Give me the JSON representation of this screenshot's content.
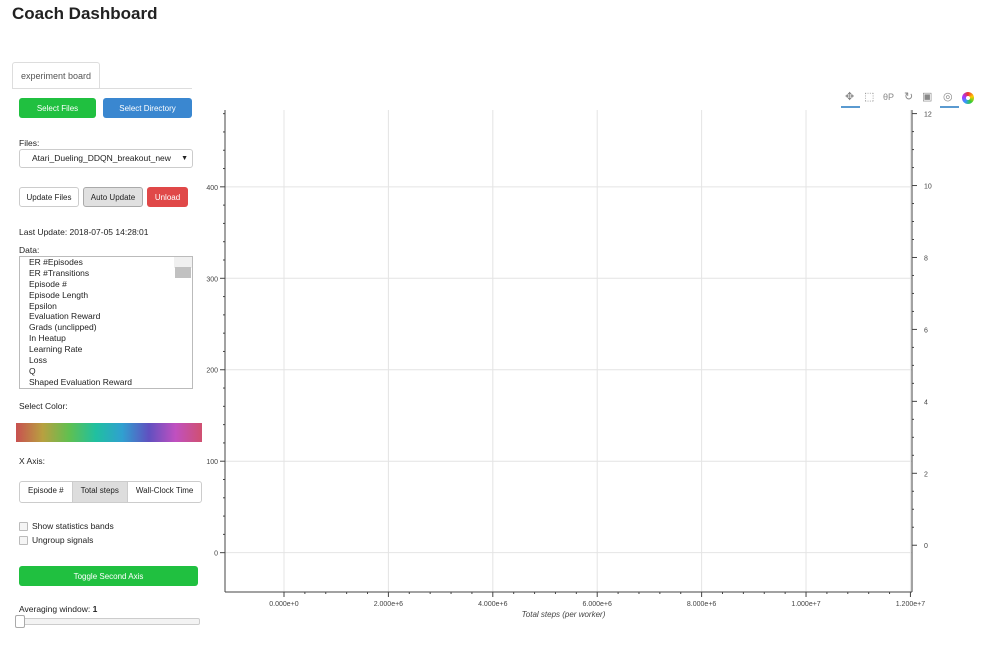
{
  "title": "Coach Dashboard",
  "tab": "experiment board",
  "buttons": {
    "select_files": "Select Files",
    "select_directory": "Select Directory",
    "update_files": "Update Files",
    "auto_update": "Auto Update",
    "unload": "Unload",
    "toggle_second_axis": "Toggle Second Axis"
  },
  "files": {
    "label": "Files:",
    "selected": "Atari_Dueling_DDQN_breakout_new"
  },
  "last_update": "Last Update: 2018-07-05 14:28:01",
  "data": {
    "label": "Data:",
    "items": [
      "ER #Episodes",
      "ER #Transitions",
      "Episode #",
      "Episode Length",
      "Epsilon",
      "Evaluation Reward",
      "Grads (unclipped)",
      "In Heatup",
      "Learning Rate",
      "Loss",
      "Q",
      "Shaped Evaluation Reward"
    ]
  },
  "select_color": "Select Color:",
  "x_axis": {
    "label": "X Axis:",
    "options": [
      "Episode #",
      "Total steps",
      "Wall-Clock Time"
    ],
    "selected": "Total steps"
  },
  "checkboxes": [
    {
      "label": "Show statistics bands",
      "checked": false
    },
    {
      "label": "Ungroup signals",
      "checked": false
    }
  ],
  "averaging": {
    "label": "Averaging window:",
    "value": "1"
  },
  "colors": {
    "green": "#20c040",
    "blue": "#3a87d0",
    "red": "#e04848"
  },
  "toolbar": [
    "pan-icon",
    "box-zoom-icon",
    "wheel-zoom-icon",
    "reset-icon",
    "save-icon",
    "hover-icon",
    "color-wheel-icon"
  ],
  "chart_data": {
    "type": "line",
    "xlabel": "Total steps (per worker)",
    "xlim": [
      -1130000,
      12030000
    ],
    "x_ticks": [
      0,
      2000000,
      4000000,
      6000000,
      8000000,
      10000000,
      12000000
    ],
    "x_tick_labels": [
      "0.000e+0",
      "2.000e+6",
      "4.000e+6",
      "6.000e+6",
      "8.000e+6",
      "1.000e+7",
      "1.200e+7"
    ],
    "ylim": [
      -43,
      484
    ],
    "y_ticks": [
      "0",
      "100",
      "200",
      "300",
      "400"
    ],
    "y2lim": [
      -1.3,
      12.1
    ],
    "y2_ticks": [
      "0",
      "2",
      "4",
      "6",
      "8",
      "10",
      "12"
    ],
    "grid": true,
    "series": []
  }
}
